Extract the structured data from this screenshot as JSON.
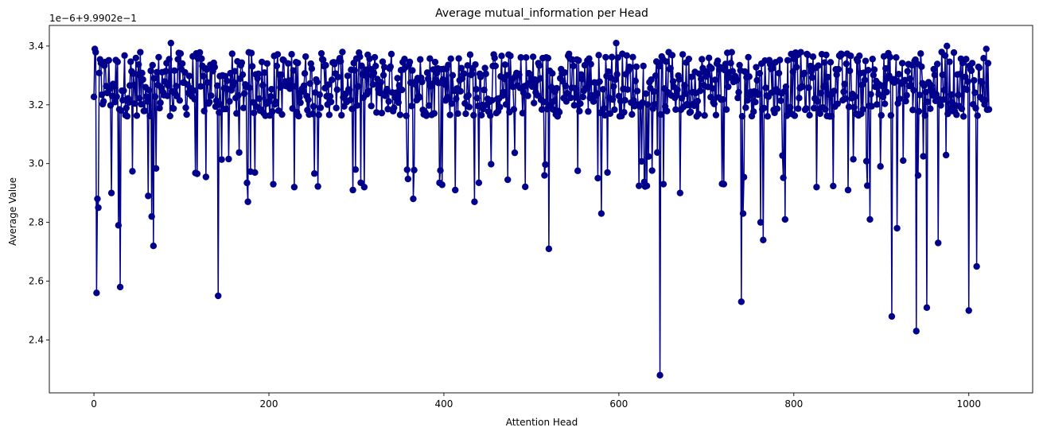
{
  "colors": {
    "series": "#00008b",
    "axes": "#000000",
    "background": "#ffffff"
  },
  "chart_data": {
    "type": "line",
    "title": "Average mutual_information per Head",
    "xlabel": "Attention Head",
    "ylabel": "Average Value",
    "offset_text": "1e−6+9.9902e−1",
    "xlim": [
      -51,
      1073
    ],
    "ylim": [
      2.22,
      3.47
    ],
    "xticks": [
      0,
      200,
      400,
      600,
      800,
      1000
    ],
    "xtick_labels": [
      "0",
      "200",
      "400",
      "600",
      "800",
      "1000"
    ],
    "yticks": [
      2.4,
      2.6,
      2.8,
      3.0,
      3.2,
      3.4
    ],
    "ytick_labels": [
      "2.4",
      "2.6",
      "2.8",
      "3.0",
      "3.2",
      "3.4"
    ],
    "grid": false,
    "marker": "circle",
    "series": [
      {
        "n_points": 1024,
        "x_start": 0,
        "x_step": 1,
        "baseline": 3.27,
        "spread": 0.11,
        "drops": [
          {
            "x": 1,
            "y": 3.39
          },
          {
            "x": 3,
            "y": 2.56
          },
          {
            "x": 5,
            "y": 2.85
          },
          {
            "x": 4,
            "y": 2.88
          },
          {
            "x": 20,
            "y": 2.9
          },
          {
            "x": 28,
            "y": 2.79
          },
          {
            "x": 30,
            "y": 2.58
          },
          {
            "x": 62,
            "y": 2.89
          },
          {
            "x": 66,
            "y": 2.82
          },
          {
            "x": 68,
            "y": 2.72
          },
          {
            "x": 88,
            "y": 3.41
          },
          {
            "x": 142,
            "y": 2.55
          },
          {
            "x": 176,
            "y": 2.87
          },
          {
            "x": 229,
            "y": 2.92
          },
          {
            "x": 296,
            "y": 2.91
          },
          {
            "x": 309,
            "y": 2.92
          },
          {
            "x": 365,
            "y": 2.88
          },
          {
            "x": 413,
            "y": 2.91
          },
          {
            "x": 435,
            "y": 2.87
          },
          {
            "x": 520,
            "y": 2.71
          },
          {
            "x": 580,
            "y": 2.83
          },
          {
            "x": 597,
            "y": 3.41
          },
          {
            "x": 647,
            "y": 2.28
          },
          {
            "x": 651,
            "y": 2.93
          },
          {
            "x": 670,
            "y": 2.9
          },
          {
            "x": 720,
            "y": 2.93
          },
          {
            "x": 740,
            "y": 2.53
          },
          {
            "x": 742,
            "y": 2.83
          },
          {
            "x": 762,
            "y": 2.8
          },
          {
            "x": 765,
            "y": 2.74
          },
          {
            "x": 790,
            "y": 2.81
          },
          {
            "x": 826,
            "y": 2.92
          },
          {
            "x": 862,
            "y": 2.91
          },
          {
            "x": 887,
            "y": 2.81
          },
          {
            "x": 912,
            "y": 2.48
          },
          {
            "x": 918,
            "y": 2.78
          },
          {
            "x": 940,
            "y": 2.43
          },
          {
            "x": 952,
            "y": 2.51
          },
          {
            "x": 965,
            "y": 2.73
          },
          {
            "x": 975,
            "y": 3.4
          },
          {
            "x": 1000,
            "y": 2.5
          },
          {
            "x": 1009,
            "y": 2.65
          },
          {
            "x": 1020,
            "y": 3.39
          }
        ]
      }
    ]
  }
}
